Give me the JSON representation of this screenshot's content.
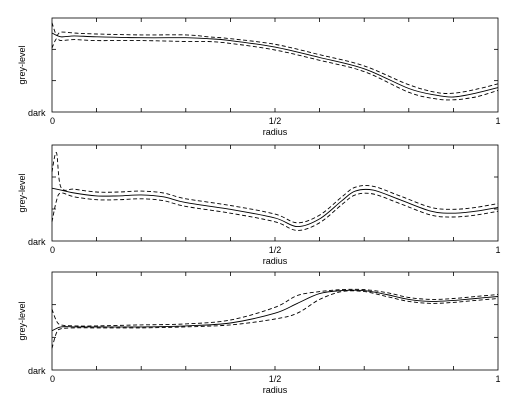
{
  "chart_data": [
    {
      "type": "line",
      "xlabel": "radius",
      "ylabel": "grey-level",
      "xlim": [
        0,
        1
      ],
      "ylim": [
        0,
        1
      ],
      "x_tick_labels": [
        "0",
        "1/2",
        "1"
      ],
      "y_tick_labels": [
        "dark"
      ],
      "series": [
        {
          "style": "solid",
          "points": [
            [
              0.0,
              0.84
            ],
            [
              0.02,
              0.8
            ],
            [
              0.05,
              0.81
            ],
            [
              0.1,
              0.8
            ],
            [
              0.2,
              0.79
            ],
            [
              0.3,
              0.79
            ],
            [
              0.35,
              0.78
            ],
            [
              0.4,
              0.76
            ],
            [
              0.5,
              0.69
            ],
            [
              0.6,
              0.58
            ],
            [
              0.7,
              0.46
            ],
            [
              0.8,
              0.25
            ],
            [
              0.86,
              0.18
            ],
            [
              0.9,
              0.16
            ],
            [
              0.95,
              0.2
            ],
            [
              1.0,
              0.26
            ]
          ]
        },
        {
          "style": "dashed",
          "points": [
            [
              0.0,
              0.95
            ],
            [
              0.01,
              0.82
            ],
            [
              0.02,
              0.85
            ],
            [
              0.05,
              0.84
            ],
            [
              0.1,
              0.83
            ],
            [
              0.2,
              0.82
            ],
            [
              0.3,
              0.82
            ],
            [
              0.35,
              0.8
            ],
            [
              0.4,
              0.78
            ],
            [
              0.5,
              0.72
            ],
            [
              0.6,
              0.61
            ],
            [
              0.7,
              0.49
            ],
            [
              0.8,
              0.29
            ],
            [
              0.86,
              0.21
            ],
            [
              0.9,
              0.2
            ],
            [
              0.95,
              0.24
            ],
            [
              1.0,
              0.3
            ]
          ]
        },
        {
          "style": "dashed",
          "points": [
            [
              0.0,
              0.68
            ],
            [
              0.01,
              0.78
            ],
            [
              0.02,
              0.76
            ],
            [
              0.05,
              0.77
            ],
            [
              0.1,
              0.76
            ],
            [
              0.2,
              0.76
            ],
            [
              0.3,
              0.75
            ],
            [
              0.35,
              0.75
            ],
            [
              0.4,
              0.73
            ],
            [
              0.5,
              0.66
            ],
            [
              0.6,
              0.55
            ],
            [
              0.7,
              0.43
            ],
            [
              0.8,
              0.21
            ],
            [
              0.86,
              0.14
            ],
            [
              0.9,
              0.13
            ],
            [
              0.95,
              0.16
            ],
            [
              1.0,
              0.23
            ]
          ]
        }
      ]
    },
    {
      "type": "line",
      "xlabel": "radius",
      "ylabel": "grey-level",
      "xlim": [
        0,
        1
      ],
      "ylim": [
        0,
        1
      ],
      "x_tick_labels": [
        "0",
        "1/2",
        "1"
      ],
      "y_tick_labels": [
        "dark"
      ],
      "series": [
        {
          "style": "solid",
          "points": [
            [
              0.0,
              0.55
            ],
            [
              0.02,
              0.53
            ],
            [
              0.05,
              0.5
            ],
            [
              0.1,
              0.47
            ],
            [
              0.15,
              0.47
            ],
            [
              0.2,
              0.48
            ],
            [
              0.25,
              0.46
            ],
            [
              0.3,
              0.4
            ],
            [
              0.4,
              0.33
            ],
            [
              0.5,
              0.24
            ],
            [
              0.55,
              0.15
            ],
            [
              0.6,
              0.23
            ],
            [
              0.65,
              0.42
            ],
            [
              0.68,
              0.52
            ],
            [
              0.72,
              0.53
            ],
            [
              0.78,
              0.43
            ],
            [
              0.85,
              0.31
            ],
            [
              0.9,
              0.29
            ],
            [
              0.95,
              0.31
            ],
            [
              1.0,
              0.35
            ]
          ]
        },
        {
          "style": "dashed",
          "points": [
            [
              0.0,
              0.72
            ],
            [
              0.01,
              0.92
            ],
            [
              0.02,
              0.56
            ],
            [
              0.05,
              0.54
            ],
            [
              0.1,
              0.51
            ],
            [
              0.15,
              0.51
            ],
            [
              0.2,
              0.52
            ],
            [
              0.25,
              0.5
            ],
            [
              0.3,
              0.44
            ],
            [
              0.4,
              0.37
            ],
            [
              0.5,
              0.28
            ],
            [
              0.55,
              0.19
            ],
            [
              0.6,
              0.27
            ],
            [
              0.65,
              0.46
            ],
            [
              0.68,
              0.56
            ],
            [
              0.72,
              0.57
            ],
            [
              0.78,
              0.47
            ],
            [
              0.85,
              0.35
            ],
            [
              0.9,
              0.33
            ],
            [
              0.95,
              0.35
            ],
            [
              1.0,
              0.39
            ]
          ]
        },
        {
          "style": "dashed",
          "points": [
            [
              0.0,
              0.2
            ],
            [
              0.01,
              0.42
            ],
            [
              0.02,
              0.5
            ],
            [
              0.05,
              0.46
            ],
            [
              0.1,
              0.43
            ],
            [
              0.15,
              0.43
            ],
            [
              0.2,
              0.44
            ],
            [
              0.25,
              0.42
            ],
            [
              0.3,
              0.36
            ],
            [
              0.4,
              0.29
            ],
            [
              0.5,
              0.2
            ],
            [
              0.55,
              0.11
            ],
            [
              0.6,
              0.19
            ],
            [
              0.65,
              0.38
            ],
            [
              0.68,
              0.48
            ],
            [
              0.72,
              0.49
            ],
            [
              0.78,
              0.39
            ],
            [
              0.85,
              0.27
            ],
            [
              0.9,
              0.25
            ],
            [
              0.95,
              0.27
            ],
            [
              1.0,
              0.31
            ]
          ]
        }
      ]
    },
    {
      "type": "line",
      "xlabel": "radius",
      "ylabel": "grey-level",
      "xlim": [
        0,
        1
      ],
      "ylim": [
        0,
        1
      ],
      "x_tick_labels": [
        "0",
        "1/2",
        "1"
      ],
      "y_tick_labels": [
        "dark"
      ],
      "series": [
        {
          "style": "solid",
          "points": [
            [
              0.0,
              0.4
            ],
            [
              0.02,
              0.44
            ],
            [
              0.05,
              0.44
            ],
            [
              0.1,
              0.44
            ],
            [
              0.2,
              0.44
            ],
            [
              0.3,
              0.45
            ],
            [
              0.4,
              0.48
            ],
            [
              0.5,
              0.58
            ],
            [
              0.55,
              0.68
            ],
            [
              0.6,
              0.78
            ],
            [
              0.65,
              0.81
            ],
            [
              0.7,
              0.81
            ],
            [
              0.75,
              0.77
            ],
            [
              0.8,
              0.72
            ],
            [
              0.85,
              0.7
            ],
            [
              0.9,
              0.71
            ],
            [
              0.95,
              0.73
            ],
            [
              1.0,
              0.75
            ]
          ]
        },
        {
          "style": "dashed",
          "points": [
            [
              0.0,
              0.62
            ],
            [
              0.01,
              0.5
            ],
            [
              0.02,
              0.46
            ],
            [
              0.05,
              0.45
            ],
            [
              0.1,
              0.45
            ],
            [
              0.2,
              0.46
            ],
            [
              0.3,
              0.47
            ],
            [
              0.4,
              0.51
            ],
            [
              0.5,
              0.64
            ],
            [
              0.55,
              0.76
            ],
            [
              0.6,
              0.8
            ],
            [
              0.65,
              0.82
            ],
            [
              0.7,
              0.82
            ],
            [
              0.75,
              0.79
            ],
            [
              0.8,
              0.74
            ],
            [
              0.85,
              0.72
            ],
            [
              0.9,
              0.73
            ],
            [
              0.95,
              0.75
            ],
            [
              1.0,
              0.77
            ]
          ]
        },
        {
          "style": "dashed",
          "points": [
            [
              0.0,
              0.22
            ],
            [
              0.01,
              0.38
            ],
            [
              0.02,
              0.42
            ],
            [
              0.05,
              0.43
            ],
            [
              0.1,
              0.43
            ],
            [
              0.2,
              0.43
            ],
            [
              0.3,
              0.44
            ],
            [
              0.4,
              0.46
            ],
            [
              0.5,
              0.52
            ],
            [
              0.55,
              0.58
            ],
            [
              0.6,
              0.72
            ],
            [
              0.65,
              0.8
            ],
            [
              0.7,
              0.8
            ],
            [
              0.75,
              0.75
            ],
            [
              0.8,
              0.7
            ],
            [
              0.85,
              0.68
            ],
            [
              0.9,
              0.69
            ],
            [
              0.95,
              0.71
            ],
            [
              1.0,
              0.73
            ]
          ]
        }
      ]
    }
  ]
}
